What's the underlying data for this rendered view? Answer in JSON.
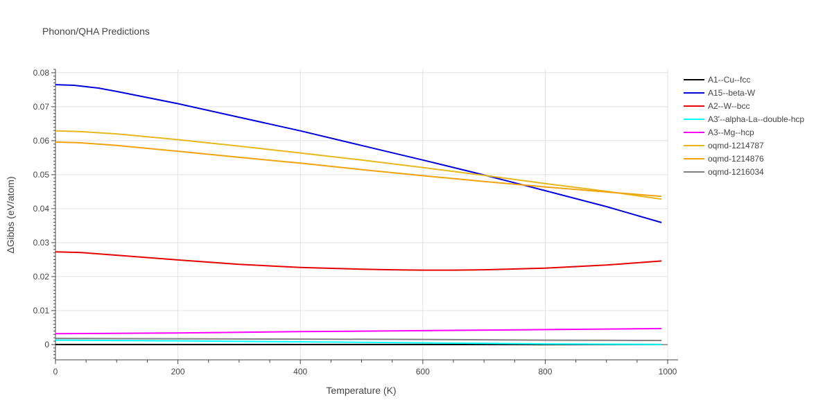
{
  "chart_data": {
    "type": "line",
    "title": "Phonon/QHA Predictions",
    "xlabel": "Temperature (K)",
    "ylabel": "ΔGibbs (eV/atom)",
    "xlim": [
      0,
      1000
    ],
    "ylim": [
      -0.0045,
      0.081
    ],
    "x_ticks": [
      0,
      200,
      400,
      600,
      800,
      1000
    ],
    "x_tick_labels": [
      "0",
      "200",
      "400",
      "600",
      "800",
      "1000"
    ],
    "y_ticks": [
      0,
      0.01,
      0.02,
      0.03,
      0.04,
      0.05,
      0.06,
      0.07,
      0.08
    ],
    "y_tick_labels": [
      "0",
      "0.01",
      "0.02",
      "0.03",
      "0.04",
      "0.05",
      "0.06",
      "0.07",
      "0.08"
    ],
    "grid": true,
    "legend_position": "right",
    "series": [
      {
        "name": "A1--Cu--fcc",
        "color": "#000000",
        "x": [
          0,
          100,
          200,
          300,
          400,
          500,
          600,
          700,
          800,
          900,
          990
        ],
        "y": [
          0,
          0,
          0,
          0,
          0,
          0,
          0,
          0,
          0,
          0,
          0
        ]
      },
      {
        "name": "A15--beta-W",
        "color": "#0000dd",
        "x": [
          0,
          30,
          70,
          100,
          200,
          300,
          400,
          500,
          600,
          700,
          800,
          900,
          990
        ],
        "y": [
          0.0765,
          0.0763,
          0.0755,
          0.0745,
          0.0709,
          0.0669,
          0.0629,
          0.0586,
          0.0543,
          0.0499,
          0.0453,
          0.0406,
          0.0359
        ]
      },
      {
        "name": "A2--W--bcc",
        "color": "#e60000",
        "x": [
          0,
          40,
          100,
          200,
          300,
          400,
          500,
          550,
          600,
          650,
          700,
          800,
          900,
          990
        ],
        "y": [
          0.0273,
          0.0271,
          0.0263,
          0.0249,
          0.0236,
          0.0227,
          0.0222,
          0.022,
          0.0219,
          0.0219,
          0.022,
          0.0225,
          0.0234,
          0.0246
        ]
      },
      {
        "name": "A3'--alpha-La--double-hcp",
        "color": "#00ffff",
        "x": [
          0,
          200,
          400,
          600,
          800,
          990
        ],
        "y": [
          0.0013,
          0.0011,
          0.0008,
          0.0005,
          0.0002,
          0.0
        ]
      },
      {
        "name": "A3--Mg--hcp",
        "color": "#ff00ff",
        "x": [
          0,
          200,
          400,
          600,
          800,
          990
        ],
        "y": [
          0.0032,
          0.0034,
          0.0038,
          0.0041,
          0.0044,
          0.0047
        ]
      },
      {
        "name": "oqmd-1214787",
        "color": "#e6b81c",
        "x": [
          0,
          40,
          100,
          200,
          300,
          400,
          500,
          600,
          700,
          800,
          900,
          990
        ],
        "y": [
          0.0629,
          0.0627,
          0.062,
          0.0603,
          0.0584,
          0.0564,
          0.0543,
          0.0521,
          0.0498,
          0.0474,
          0.0451,
          0.0428
        ]
      },
      {
        "name": "oqmd-1214876",
        "color": "#f2a20c",
        "x": [
          0,
          40,
          100,
          200,
          300,
          400,
          500,
          600,
          700,
          800,
          900,
          990
        ],
        "y": [
          0.0596,
          0.0594,
          0.0586,
          0.0569,
          0.0551,
          0.0534,
          0.0515,
          0.0497,
          0.048,
          0.0464,
          0.0449,
          0.0436
        ]
      },
      {
        "name": "oqmd-1216034",
        "color": "#808080",
        "x": [
          0,
          200,
          400,
          600,
          800,
          990
        ],
        "y": [
          0.0018,
          0.0017,
          0.0016,
          0.0015,
          0.0013,
          0.0012
        ]
      }
    ]
  }
}
